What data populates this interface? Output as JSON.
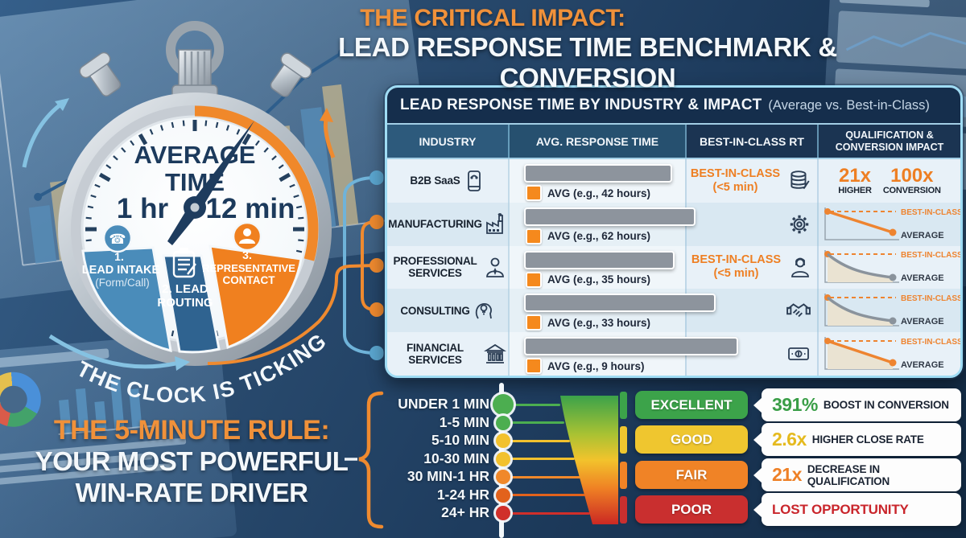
{
  "header": {
    "line1": "THE CRITICAL IMPACT:",
    "line2": "LEAD RESPONSE TIME BENCHMARK & CONVERSION"
  },
  "stopwatch": {
    "dial_line1": "AVERAGE",
    "dial_line2": "TIME",
    "time_left": "1 hr",
    "time_right": "12 min",
    "segments": [
      {
        "num": "1.",
        "label": "LEAD INTAKE",
        "sublabel": "(Form/Call)",
        "icon": "phone-icon",
        "color": "#4a8cba"
      },
      {
        "num": "2. LEAD",
        "label": "ROUTING",
        "icon": "clipboard-icon",
        "color": "#2f6390"
      },
      {
        "num": "3.",
        "label": "REPRESENTATIVE",
        "label2": "CONTACT",
        "icon": "person-icon",
        "color": "#f0801f"
      }
    ],
    "ticker_text": "THE CLOCK IS TICKING"
  },
  "table": {
    "title": "LEAD RESPONSE TIME BY INDUSTRY & IMPACT",
    "subtitle": "(Average vs. Best-in-Class)",
    "columns": [
      "INDUSTRY",
      "AVG. RESPONSE TIME",
      "BEST-IN-CLASS RT",
      "QUALIFICATION & CONVERSION IMPACT"
    ],
    "chart_labels": {
      "best": "BEST-IN-CLASS",
      "avg": "AVERAGE"
    },
    "rows": [
      {
        "industry": "B2B SaaS",
        "industry_icon": "smartphone-icon",
        "avg_label": "AVG (e.g., 42 hours)",
        "avg_hours": 42,
        "bar_pct": 64,
        "best_in_class": "BEST-IN-CLASS",
        "best_in_class_sub": "(<5 min)",
        "rt_icon": "database-icon",
        "impact_type": "stats",
        "impact_stats": [
          {
            "value": "21x",
            "label": "HIGHER"
          },
          {
            "value": "100x",
            "label": "CONVERSION"
          }
        ]
      },
      {
        "industry": "MANUFACTURING",
        "industry_icon": "factory-icon",
        "avg_label": "AVG (e.g., 62 hours)",
        "avg_hours": 62,
        "bar_pct": 74,
        "best_in_class": "",
        "best_in_class_sub": "",
        "rt_icon": "gear-icon",
        "impact_type": "line-orange"
      },
      {
        "industry": "PROFESSIONAL SERVICES",
        "industry_icon": "businessman-icon",
        "avg_label": "AVG (e.g., 35 hours)",
        "avg_hours": 35,
        "bar_pct": 65,
        "best_in_class": "BEST-IN-CLASS",
        "best_in_class_sub": "(<5 min)",
        "rt_icon": "businesswoman-icon",
        "impact_type": "curve-gray"
      },
      {
        "industry": "CONSULTING",
        "industry_icon": "idea-head-icon",
        "avg_label": "AVG (e.g., 33 hours)",
        "avg_hours": 33,
        "bar_pct": 83,
        "best_in_class": "",
        "best_in_class_sub": "",
        "rt_icon": "handshake-icon",
        "impact_type": "curve-gray"
      },
      {
        "industry": "FINANCIAL SERVICES",
        "industry_icon": "bank-icon",
        "avg_label": "AVG (e.g., 9 hours)",
        "avg_hours": 9,
        "bar_pct": 93,
        "best_in_class": "",
        "best_in_class_sub": "",
        "rt_icon": "money-icon",
        "impact_type": "line-orange-fill"
      }
    ]
  },
  "five_minute": {
    "line1": "THE 5-MINUTE RULE:",
    "line2": "YOUR MOST POWERFUL",
    "line3": "WIN-RATE DRIVER"
  },
  "scale": {
    "items": [
      {
        "label": "UNDER 1 MIN",
        "color": "#4cae50"
      },
      {
        "label": "1-5 MIN",
        "color": "#4cae50"
      },
      {
        "label": "5-10 MIN",
        "color": "#f2c12e"
      },
      {
        "label": "10-30 MIN",
        "color": "#f2c12e"
      },
      {
        "label": "30 MIN-1 HR",
        "color": "#f0882a"
      },
      {
        "label": "1-24 HR",
        "color": "#e2621c"
      },
      {
        "label": "24+ HR",
        "color": "#d02f2a"
      }
    ]
  },
  "ratings": [
    {
      "label": "EXCELLENT",
      "color": "#3ca34a",
      "impact_value": "391%",
      "impact_value_color": "#3a9e47",
      "impact_text": "BOOST IN CONVERSION",
      "impact_text_color": "#1b2433"
    },
    {
      "label": "GOOD",
      "color": "#efc62f",
      "impact_value": "2.6x",
      "impact_value_color": "#e5ba1e",
      "impact_text": "HIGHER CLOSE RATE",
      "impact_text_color": "#1b2433"
    },
    {
      "label": "FAIR",
      "color": "#f08326",
      "impact_value": "21x",
      "impact_value_color": "#ee8026",
      "impact_text": "DECREASE IN QUALIFICATION",
      "impact_text_color": "#1b2433"
    },
    {
      "label": "POOR",
      "color": "#c92f2f",
      "impact_value": "",
      "impact_value_color": "#c9252b",
      "impact_text": "LOST OPPORTUNITY",
      "impact_text_color": "#c9252b"
    }
  ],
  "accent": {
    "orange": "#ef8a2f",
    "navy": "#1e3c5e",
    "light_blue": "#85c2e2"
  }
}
